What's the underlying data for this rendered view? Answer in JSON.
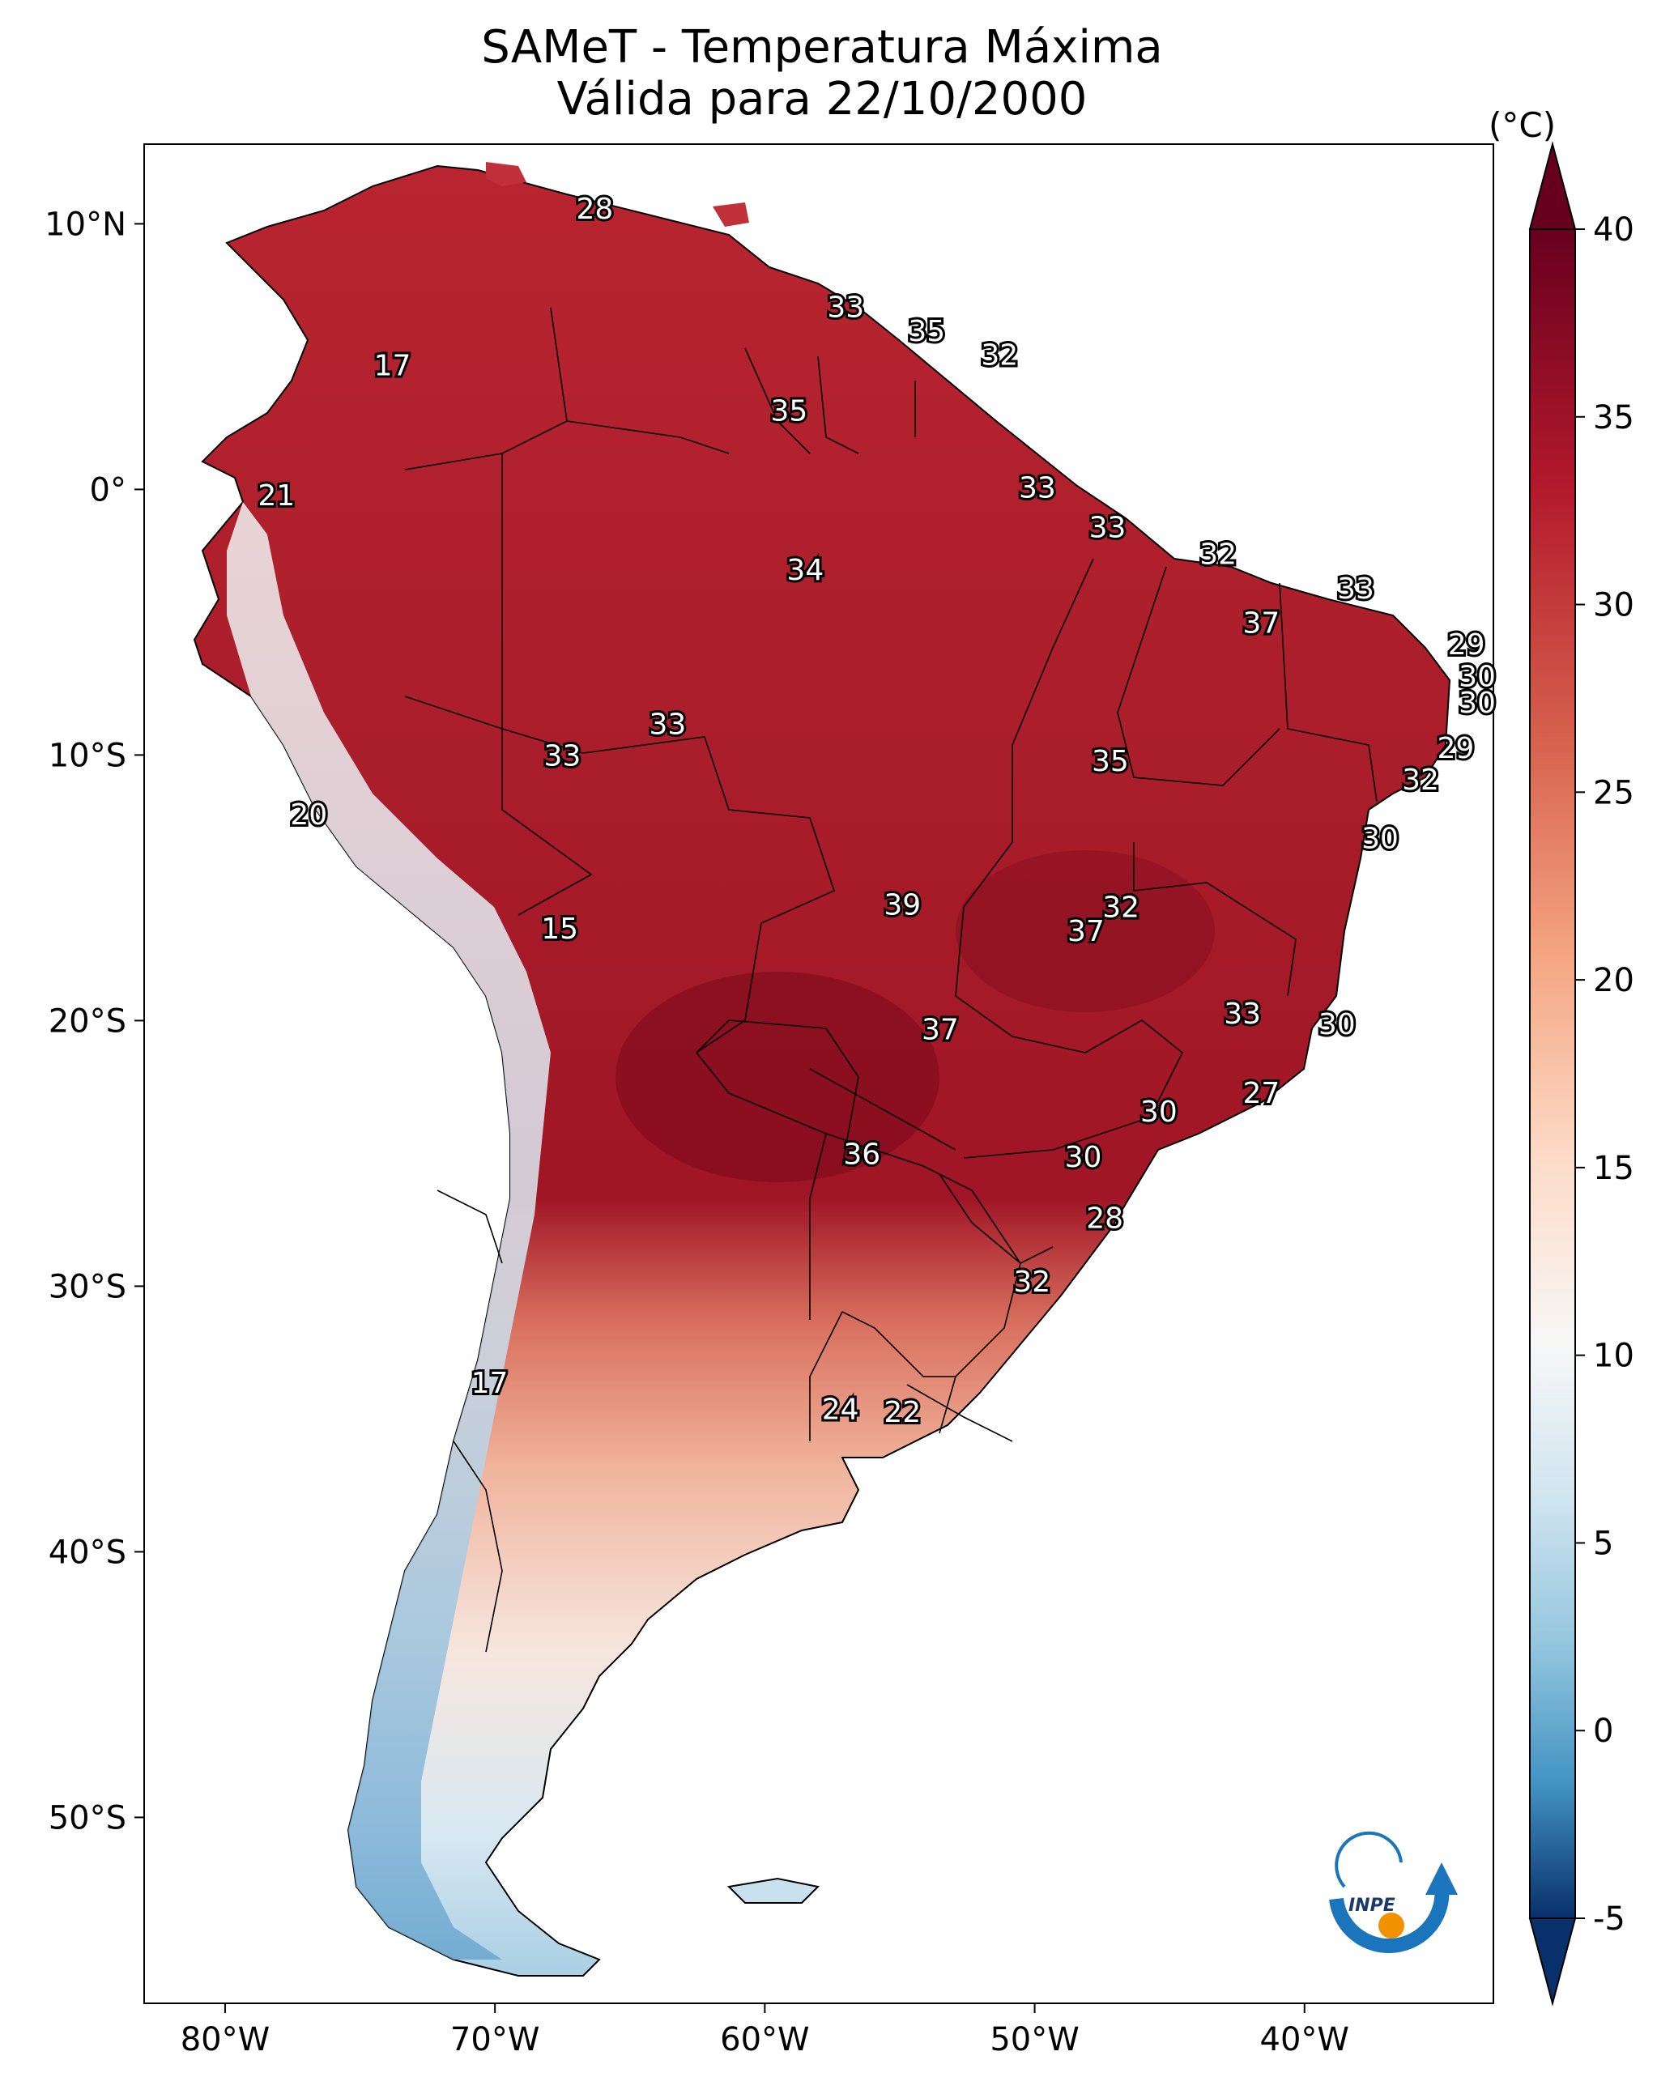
{
  "title_line1": "SAMeT - Temperatura Máxima",
  "title_line2": "Válida para 22/10/2000",
  "colorbar": {
    "unit": "(°C)",
    "min": -5,
    "max": 40,
    "ticks": [
      "-5",
      "0",
      "5",
      "10",
      "15",
      "20",
      "25",
      "30",
      "35",
      "40"
    ],
    "colors": [
      "#08306b",
      "#2166ac",
      "#4393c3",
      "#92c5de",
      "#d1e5f0",
      "#f7f7f7",
      "#fddbc7",
      "#f4a582",
      "#d6604d",
      "#b2182b",
      "#67001f"
    ]
  },
  "axes": {
    "lon_ticks": [
      "80°W",
      "70°W",
      "60°W",
      "50°W",
      "40°W"
    ],
    "lat_ticks": [
      "10°N",
      "0°",
      "10°S",
      "20°S",
      "30°S",
      "40°S",
      "50°S"
    ],
    "lon_range": [
      -83,
      -33
    ],
    "lat_range": [
      -57,
      13
    ]
  },
  "logo_text": "INPE",
  "labels": [
    {
      "text": "28",
      "lon": -66.3,
      "lat": 10.5
    },
    {
      "text": "33",
      "lon": -57.0,
      "lat": 6.8
    },
    {
      "text": "35",
      "lon": -54.0,
      "lat": 5.9
    },
    {
      "text": "32",
      "lon": -51.3,
      "lat": 5.0
    },
    {
      "text": "17",
      "lon": -73.8,
      "lat": 4.6
    },
    {
      "text": "35",
      "lon": -59.1,
      "lat": 2.9
    },
    {
      "text": "21",
      "lon": -78.1,
      "lat": -0.3
    },
    {
      "text": "33",
      "lon": -49.9,
      "lat": 0.0
    },
    {
      "text": "33",
      "lon": -47.3,
      "lat": -1.5
    },
    {
      "text": "34",
      "lon": -58.5,
      "lat": -3.1
    },
    {
      "text": "32",
      "lon": -43.2,
      "lat": -2.5
    },
    {
      "text": "33",
      "lon": -38.1,
      "lat": -3.8
    },
    {
      "text": "37",
      "lon": -41.6,
      "lat": -5.1
    },
    {
      "text": "29",
      "lon": -34.0,
      "lat": -5.9
    },
    {
      "text": "30",
      "lon": -33.6,
      "lat": -7.1
    },
    {
      "text": "30",
      "lon": -33.6,
      "lat": -8.1
    },
    {
      "text": "33",
      "lon": -63.6,
      "lat": -8.9
    },
    {
      "text": "33",
      "lon": -67.5,
      "lat": -10.1
    },
    {
      "text": "29",
      "lon": -34.4,
      "lat": -9.8
    },
    {
      "text": "35",
      "lon": -47.2,
      "lat": -10.3
    },
    {
      "text": "32",
      "lon": -35.7,
      "lat": -11.0
    },
    {
      "text": "20",
      "lon": -76.9,
      "lat": -12.3
    },
    {
      "text": "30",
      "lon": -37.2,
      "lat": -13.2
    },
    {
      "text": "39",
      "lon": -54.9,
      "lat": -15.7
    },
    {
      "text": "32",
      "lon": -46.8,
      "lat": -15.8
    },
    {
      "text": "37",
      "lon": -48.1,
      "lat": -16.7
    },
    {
      "text": "15",
      "lon": -67.6,
      "lat": -16.6
    },
    {
      "text": "33",
      "lon": -42.3,
      "lat": -19.8
    },
    {
      "text": "30",
      "lon": -38.8,
      "lat": -20.2
    },
    {
      "text": "37",
      "lon": -53.5,
      "lat": -20.4
    },
    {
      "text": "27",
      "lon": -41.6,
      "lat": -22.8
    },
    {
      "text": "30",
      "lon": -45.4,
      "lat": -23.5
    },
    {
      "text": "36",
      "lon": -56.4,
      "lat": -25.1
    },
    {
      "text": "30",
      "lon": -48.2,
      "lat": -25.2
    },
    {
      "text": "28",
      "lon": -47.4,
      "lat": -27.5
    },
    {
      "text": "32",
      "lon": -50.1,
      "lat": -29.9
    },
    {
      "text": "17",
      "lon": -70.2,
      "lat": -33.7
    },
    {
      "text": "24",
      "lon": -57.2,
      "lat": -34.7
    },
    {
      "text": "22",
      "lon": -54.9,
      "lat": -34.8
    }
  ]
}
